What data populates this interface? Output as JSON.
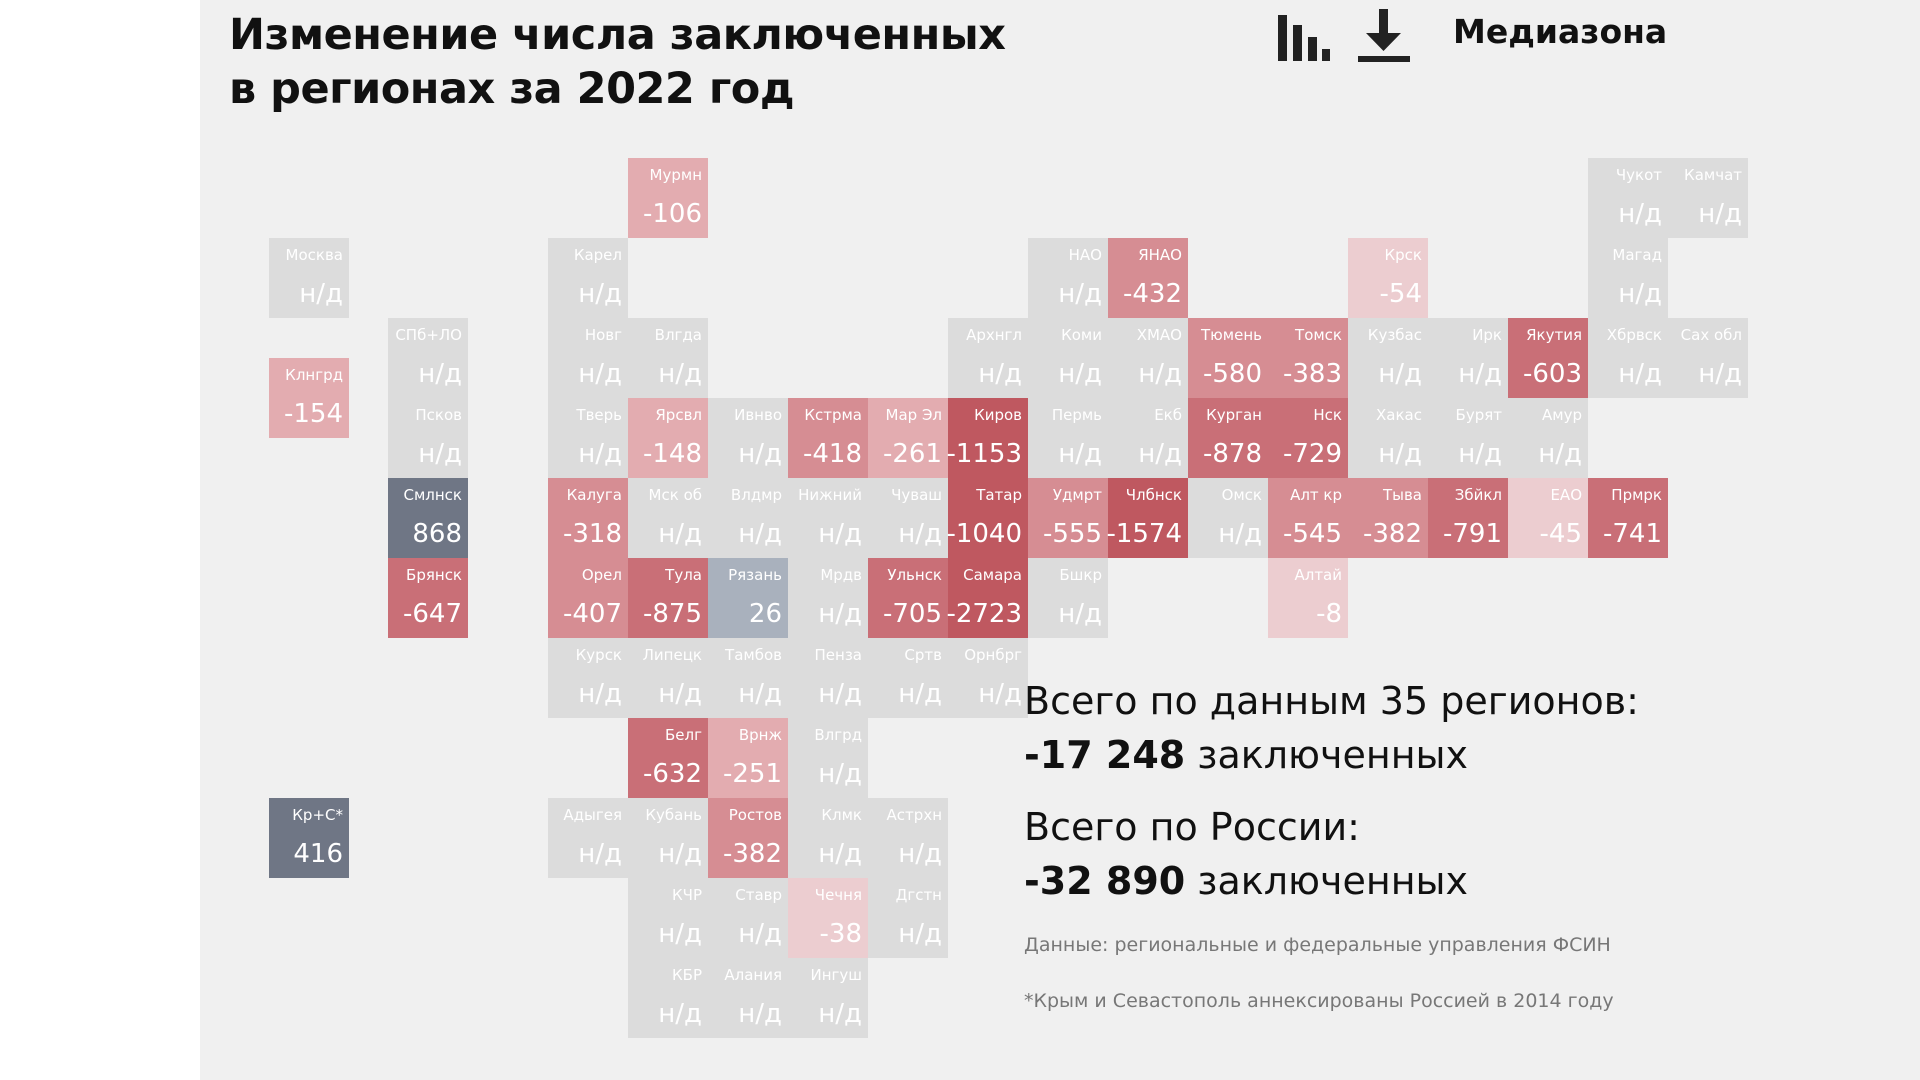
{
  "title": {
    "line1": "Изменение числа заключенных",
    "line2": "в регионах за 2022 год"
  },
  "brand": "Медиазона",
  "toolbar": {
    "icons": [
      "bar-chart-icon",
      "download-icon"
    ]
  },
  "colors": {
    "background": "#f0f0f0",
    "no_data": "#dcdcdc",
    "increase_strong": "#6f7685",
    "increase_weak": "#a9b1bd",
    "decrease_scale": [
      "#eccdd0",
      "#e3acb0",
      "#d68d93",
      "#c96f77",
      "#bf5860"
    ]
  },
  "no_data_label": "н/д",
  "regions": [
    {
      "name": "Мурмн",
      "value": -106
    },
    {
      "name": "Чукот",
      "value": null
    },
    {
      "name": "Камчат",
      "value": null
    },
    {
      "name": "Москва",
      "value": null
    },
    {
      "name": "Карел",
      "value": null
    },
    {
      "name": "НАО",
      "value": null
    },
    {
      "name": "ЯНАО",
      "value": -432
    },
    {
      "name": "Крск",
      "value": -54
    },
    {
      "name": "Магад",
      "value": null
    },
    {
      "name": "СПб+ЛО",
      "value": null
    },
    {
      "name": "Новг",
      "value": null
    },
    {
      "name": "Влгда",
      "value": null
    },
    {
      "name": "Архнгл",
      "value": null
    },
    {
      "name": "Коми",
      "value": null
    },
    {
      "name": "ХМАО",
      "value": null
    },
    {
      "name": "Тюмень",
      "value": -580
    },
    {
      "name": "Томск",
      "value": -383
    },
    {
      "name": "Кузбас",
      "value": null
    },
    {
      "name": "Ирк",
      "value": null
    },
    {
      "name": "Якутия",
      "value": -603
    },
    {
      "name": "Хбрвск",
      "value": null
    },
    {
      "name": "Сах обл",
      "value": null
    },
    {
      "name": "Клнгрд",
      "value": -154
    },
    {
      "name": "Псков",
      "value": null
    },
    {
      "name": "Тверь",
      "value": null
    },
    {
      "name": "Ярсвл",
      "value": -148
    },
    {
      "name": "Ивнво",
      "value": null
    },
    {
      "name": "Кстрма",
      "value": -418
    },
    {
      "name": "Мар Эл",
      "value": -261
    },
    {
      "name": "Киров",
      "value": -1153
    },
    {
      "name": "Пермь",
      "value": null
    },
    {
      "name": "Екб",
      "value": null
    },
    {
      "name": "Курган",
      "value": -878
    },
    {
      "name": "Нск",
      "value": -729
    },
    {
      "name": "Хакас",
      "value": null
    },
    {
      "name": "Бурят",
      "value": null
    },
    {
      "name": "Амур",
      "value": null
    },
    {
      "name": "Смлнск",
      "value": 868
    },
    {
      "name": "Калуга",
      "value": -318
    },
    {
      "name": "Мск об",
      "value": null
    },
    {
      "name": "Влдмр",
      "value": null
    },
    {
      "name": "Нижний",
      "value": null
    },
    {
      "name": "Чуваш",
      "value": null
    },
    {
      "name": "Татар",
      "value": -1040
    },
    {
      "name": "Удмрт",
      "value": -555
    },
    {
      "name": "Члбнск",
      "value": -1574
    },
    {
      "name": "Омск",
      "value": null
    },
    {
      "name": "Алт кр",
      "value": -545
    },
    {
      "name": "Тыва",
      "value": -382
    },
    {
      "name": "Збйкл",
      "value": -791
    },
    {
      "name": "ЕАО",
      "value": -45
    },
    {
      "name": "Прмрк",
      "value": -741
    },
    {
      "name": "Брянск",
      "value": -647
    },
    {
      "name": "Орел",
      "value": -407
    },
    {
      "name": "Тула",
      "value": -875
    },
    {
      "name": "Рязань",
      "value": 26
    },
    {
      "name": "Мрдв",
      "value": null
    },
    {
      "name": "Ульнск",
      "value": -705
    },
    {
      "name": "Самара",
      "value": -2723
    },
    {
      "name": "Бшкр",
      "value": null
    },
    {
      "name": "Алтай",
      "value": -8
    },
    {
      "name": "Курск",
      "value": null
    },
    {
      "name": "Липецк",
      "value": null
    },
    {
      "name": "Тамбов",
      "value": null
    },
    {
      "name": "Пенза",
      "value": null
    },
    {
      "name": "Сртв",
      "value": null
    },
    {
      "name": "Орнбрг",
      "value": null
    },
    {
      "name": "Белг",
      "value": -632
    },
    {
      "name": "Врнж",
      "value": -251
    },
    {
      "name": "Влгрд",
      "value": null
    },
    {
      "name": "Кр+С*",
      "value": 416
    },
    {
      "name": "Адыгея",
      "value": null
    },
    {
      "name": "Кубань",
      "value": null
    },
    {
      "name": "Ростов",
      "value": -382
    },
    {
      "name": "Клмк",
      "value": null
    },
    {
      "name": "Астрхн",
      "value": null
    },
    {
      "name": "КЧР",
      "value": null
    },
    {
      "name": "Ставр",
      "value": null
    },
    {
      "name": "Чечня",
      "value": -38
    },
    {
      "name": "Дгстн",
      "value": null
    },
    {
      "name": "КБР",
      "value": null
    },
    {
      "name": "Алания",
      "value": null
    },
    {
      "name": "Ингуш",
      "value": null
    }
  ],
  "totals": {
    "regions_label": "Всего по данным 35 регионов:",
    "regions_value": "-17 248",
    "unit": "заключенных",
    "russia_label": "Всего по России:",
    "russia_value": "-32 890"
  },
  "source": "Данные: региональные и федеральные управления ФСИН",
  "footnote": "*Крым и Севастополь аннексированы Россией в 2014 году"
}
